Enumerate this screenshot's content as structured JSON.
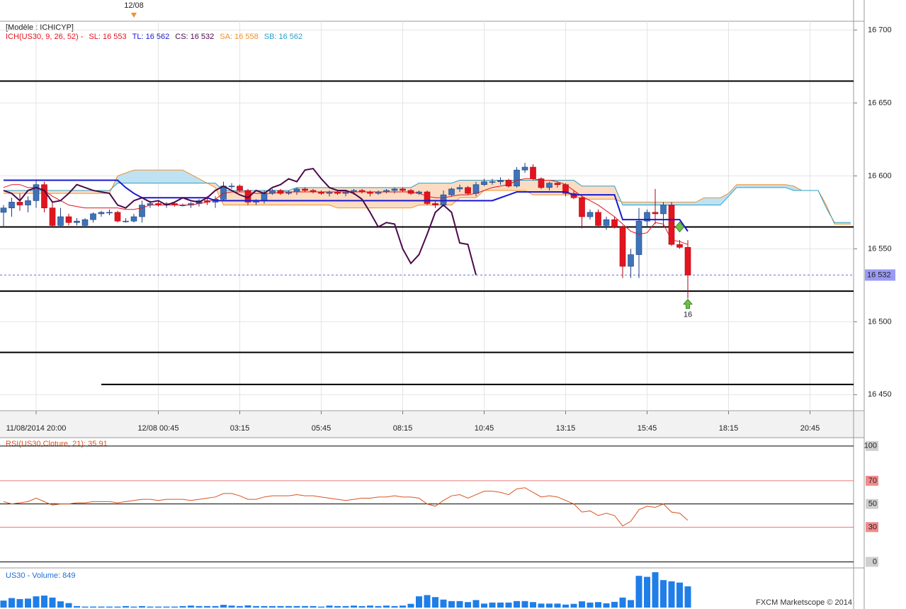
{
  "chart_data": {
    "type": "candlestick",
    "model_label": "[Modèle : ICHICYP]",
    "day_marker": {
      "value": 16,
      "label": "12/08"
    },
    "indicator_legend": [
      {
        "text": "ICH(US30, 9, 26, 52) -",
        "color": "#e0141e"
      },
      {
        "text": "SL: 16 553",
        "color": "#e0141e"
      },
      {
        "text": "TL: 16 562",
        "color": "#1a1ad0"
      },
      {
        "text": "CS: 16 532",
        "color": "#4b0a4b"
      },
      {
        "text": "SA: 16 558",
        "color": "#f0902a"
      },
      {
        "text": "SB: 16 562",
        "color": "#2aa0c8"
      }
    ],
    "xticks": [
      {
        "value": 4,
        "label": "11/08/2014 20:00"
      },
      {
        "value": 19,
        "label": "12/08 00:45"
      },
      {
        "value": 29,
        "label": "03:15"
      },
      {
        "value": 39,
        "label": "05:45"
      },
      {
        "value": 49,
        "label": "08:15"
      },
      {
        "value": 59,
        "label": "10:45"
      },
      {
        "value": 69,
        "label": "13:15"
      },
      {
        "value": 79,
        "label": "15:45"
      },
      {
        "value": 89,
        "label": "18:15"
      },
      {
        "value": 99,
        "label": "20:45"
      }
    ],
    "ylim": [
      16439,
      16706
    ],
    "yticks": [
      {
        "value": 16700,
        "label": "16 700"
      },
      {
        "value": 16650,
        "label": "16 650"
      },
      {
        "value": 16600,
        "label": "16 600"
      },
      {
        "value": 16550,
        "label": "16 550"
      },
      {
        "value": 16500,
        "label": "16 500"
      },
      {
        "value": 16450,
        "label": "16 450"
      }
    ],
    "grid": true,
    "up_color": "#3d73b8",
    "down_color": "#e3141e",
    "open": [
      16575,
      16578,
      16582,
      16580,
      16583,
      16594,
      16578,
      16566,
      16572,
      16568,
      16566,
      16570,
      16574,
      16575,
      16575,
      16569,
      16569,
      16572,
      16580,
      16581,
      16580,
      16581,
      16580,
      16580,
      16581,
      16583,
      16582,
      16584,
      16593,
      16593,
      16590,
      16582,
      16583,
      16588,
      16590,
      16588,
      16589,
      16591,
      16590,
      16589,
      16588,
      16589,
      16588,
      16589,
      16590,
      16589,
      16588,
      16589,
      16590,
      16591,
      16590,
      16588,
      16589,
      16581,
      16580,
      16587,
      16591,
      16592,
      16588,
      16594,
      16596,
      16596,
      16597,
      16593,
      16604,
      16606,
      16598,
      16592,
      16595,
      16594,
      16588,
      16585,
      16572,
      16575,
      16566,
      16570,
      16565,
      16538,
      16546,
      16569,
      16575,
      16574,
      16580,
      16553,
      16551
    ],
    "high": [
      16580,
      16585,
      16588,
      16586,
      16597,
      16596,
      16582,
      16578,
      16574,
      16571,
      16571,
      16575,
      16576,
      16577,
      16576,
      16571,
      16574,
      16583,
      16583,
      16583,
      16582,
      16582,
      16581,
      16582,
      16584,
      16586,
      16586,
      16596,
      16595,
      16594,
      16591,
      16584,
      16590,
      16591,
      16591,
      16590,
      16592,
      16592,
      16591,
      16590,
      16590,
      16590,
      16590,
      16591,
      16591,
      16590,
      16590,
      16591,
      16592,
      16592,
      16591,
      16590,
      16590,
      16583,
      16590,
      16592,
      16594,
      16593,
      16596,
      16598,
      16598,
      16599,
      16598,
      16606,
      16609,
      16608,
      16599,
      16596,
      16596,
      16595,
      16590,
      16586,
      16577,
      16577,
      16572,
      16572,
      16566,
      16550,
      16578,
      16577,
      16591,
      16582,
      16582,
      16556,
      16556
    ],
    "low": [
      16565,
      16572,
      16576,
      16575,
      16578,
      16575,
      16565,
      16565,
      16566,
      16566,
      16565,
      16568,
      16572,
      16573,
      16568,
      16568,
      16568,
      16568,
      16578,
      16579,
      16578,
      16579,
      16579,
      16578,
      16579,
      16580,
      16578,
      16583,
      16591,
      16589,
      16580,
      16580,
      16581,
      16587,
      16587,
      16587,
      16587,
      16589,
      16588,
      16587,
      16586,
      16587,
      16586,
      16587,
      16588,
      16586,
      16587,
      16588,
      16588,
      16589,
      16587,
      16587,
      16580,
      16578,
      16579,
      16586,
      16589,
      16587,
      16586,
      16593,
      16594,
      16594,
      16592,
      16592,
      16602,
      16597,
      16591,
      16590,
      16592,
      16586,
      16584,
      16564,
      16570,
      16565,
      16563,
      16564,
      16530,
      16530,
      16530,
      16565,
      16567,
      16565,
      16552,
      16550,
      16516
    ],
    "close": [
      16578,
      16582,
      16580,
      16583,
      16594,
      16578,
      16566,
      16572,
      16568,
      16569,
      16570,
      16574,
      16575,
      16575,
      16569,
      16569,
      16572,
      16580,
      16581,
      16580,
      16581,
      16580,
      16580,
      16581,
      16583,
      16582,
      16584,
      16593,
      16593,
      16590,
      16582,
      16583,
      16588,
      16590,
      16588,
      16589,
      16591,
      16590,
      16589,
      16588,
      16589,
      16588,
      16589,
      16590,
      16589,
      16588,
      16589,
      16590,
      16591,
      16590,
      16588,
      16589,
      16581,
      16580,
      16587,
      16591,
      16592,
      16588,
      16594,
      16596,
      16596,
      16597,
      16593,
      16604,
      16606,
      16598,
      16592,
      16595,
      16594,
      16588,
      16585,
      16572,
      16575,
      16566,
      16570,
      16565,
      16538,
      16546,
      16569,
      16575,
      16574,
      16580,
      16553,
      16551,
      16532
    ],
    "cloud": {
      "up_color": "#bfe2f2",
      "down_color": "#fbdcc2",
      "senkou_a": {
        "color": "#f0902a",
        "values": [
          16588,
          16588,
          16588,
          16588,
          16588,
          16588,
          16588,
          16588,
          16588,
          16588,
          16588,
          16588,
          16588,
          16588,
          16600,
          16602,
          16604,
          16604,
          16604,
          16604,
          16604,
          16604,
          16604,
          16601,
          16598,
          16595,
          16592,
          16580,
          16580,
          16580,
          16580,
          16580,
          16580,
          16580,
          16580,
          16580,
          16580,
          16580,
          16580,
          16580,
          16580,
          16578,
          16578,
          16578,
          16578,
          16578,
          16578,
          16578,
          16578,
          16578,
          16578,
          16580,
          16580,
          16580,
          16580,
          16580,
          16585,
          16585,
          16585,
          16590,
          16590,
          16590,
          16590,
          16590,
          16590,
          16587,
          16587,
          16587,
          16587,
          16587,
          16587,
          16584,
          16584,
          16584,
          16584,
          16584,
          16582,
          16582,
          16582,
          16582,
          16582,
          16582,
          16582,
          16582,
          16582,
          16582,
          16585,
          16585,
          16585,
          16588,
          16594,
          16594,
          16594,
          16594,
          16594,
          16594,
          16594,
          16593,
          16590,
          16590,
          16590,
          16580,
          16567,
          16567,
          16567
        ]
      },
      "senkou_b": {
        "color": "#2aa0c8",
        "values": [
          16590,
          16590,
          16590,
          16590,
          16590,
          16590,
          16590,
          16590,
          16590,
          16590,
          16590,
          16590,
          16590,
          16590,
          16595,
          16595,
          16595,
          16595,
          16595,
          16595,
          16595,
          16595,
          16595,
          16595,
          16595,
          16595,
          16595,
          16590,
          16590,
          16590,
          16590,
          16590,
          16590,
          16590,
          16590,
          16590,
          16592,
          16592,
          16592,
          16592,
          16592,
          16592,
          16592,
          16592,
          16592,
          16592,
          16592,
          16592,
          16592,
          16592,
          16592,
          16595,
          16595,
          16595,
          16595,
          16595,
          16597,
          16597,
          16597,
          16597,
          16597,
          16597,
          16597,
          16597,
          16597,
          16597,
          16597,
          16597,
          16597,
          16597,
          16597,
          16593,
          16593,
          16593,
          16593,
          16593,
          16580,
          16580,
          16580,
          16580,
          16580,
          16580,
          16580,
          16580,
          16580,
          16580,
          16580,
          16580,
          16580,
          16586,
          16592,
          16592,
          16592,
          16592,
          16592,
          16592,
          16592,
          16590,
          16590,
          16590,
          16590,
          16578,
          16568,
          16568,
          16568
        ]
      }
    },
    "lines": [
      {
        "color": "#e0141e",
        "width": 1,
        "values": [
          16592,
          16594,
          16594,
          16592,
          16592,
          16590,
          16586,
          16583,
          16580,
          16579,
          16578,
          16578,
          16578,
          16578,
          16578,
          16577,
          16577,
          16578,
          16580,
          16580,
          16580,
          16580,
          16580,
          16580,
          16581,
          16582,
          16584,
          16588,
          16589,
          16589,
          16589,
          16588,
          16588,
          16588,
          16589,
          16589,
          16589,
          16589,
          16589,
          16589,
          16589,
          16589,
          16589,
          16589,
          16589,
          16589,
          16589,
          16589,
          16589,
          16589,
          16589,
          16588,
          16586,
          16585,
          16585,
          16586,
          16587,
          16587,
          16588,
          16590,
          16592,
          16593,
          16594,
          16597,
          16598,
          16598,
          16597,
          16597,
          16596,
          16594,
          16590,
          16586,
          16583,
          16580,
          16576,
          16572,
          16567,
          16562,
          16560,
          16561,
          16568,
          16567,
          16556,
          16555,
          16553
        ]
      },
      {
        "color": "#1a1ad0",
        "width": 2,
        "values": [
          16597,
          16597,
          16597,
          16597,
          16597,
          16597,
          16597,
          16597,
          16597,
          16597,
          16597,
          16597,
          16597,
          16597,
          16597,
          16592,
          16588,
          16585,
          16585,
          16585,
          16585,
          16585,
          16585,
          16585,
          16585,
          16585,
          16583,
          16583,
          16583,
          16583,
          16583,
          16583,
          16583,
          16583,
          16583,
          16583,
          16583,
          16583,
          16583,
          16583,
          16583,
          16583,
          16583,
          16583,
          16583,
          16583,
          16583,
          16583,
          16583,
          16583,
          16583,
          16583,
          16583,
          16583,
          16583,
          16583,
          16583,
          16583,
          16583,
          16583,
          16583,
          16585,
          16587,
          16589,
          16589,
          16589,
          16589,
          16589,
          16589,
          16589,
          16587,
          16587,
          16587,
          16587,
          16587,
          16587,
          16570,
          16570,
          16570,
          16570,
          16570,
          16570,
          16570,
          16570,
          16562
        ]
      },
      {
        "color": "#4b0a4b",
        "width": 2,
        "values": [
          16590,
          16588,
          16583,
          16590,
          16592,
          16590,
          16582,
          16583,
          16588,
          16594,
          16592,
          16590,
          16589,
          16588,
          16580,
          16578,
          16583,
          16585,
          16582,
          16583,
          16580,
          16582,
          16585,
          16583,
          16582,
          16585,
          16590,
          16593,
          16590,
          16587,
          16585,
          16590,
          16588,
          16592,
          16594,
          16598,
          16596,
          16604,
          16605,
          16598,
          16592,
          16590,
          16590,
          16588,
          16584,
          16575,
          16565,
          16568,
          16567,
          16550,
          16540,
          16546,
          16560,
          16575,
          16580,
          16575,
          16554,
          16553,
          16532
        ]
      }
    ],
    "levels": [
      {
        "value": 16665
      },
      {
        "value": 16565
      },
      {
        "value": 16521
      },
      {
        "value": 16479
      },
      {
        "value": 16457,
        "from": 12
      }
    ],
    "last_price": {
      "value": 16532,
      "label": "16 532"
    },
    "signals": [
      {
        "slot": 83,
        "price": 16565
      },
      {
        "slot": 84,
        "price": 16512,
        "label": "16"
      }
    ],
    "rsi": {
      "type": "line",
      "label": "RSI(US30,Cloture, 21): 35,91",
      "color": "#d9531e",
      "ylim": [
        -4,
        106
      ],
      "yticks": [
        100,
        70,
        50,
        30,
        0
      ],
      "band_ticks": [
        1,
        3
      ],
      "values": [
        52,
        50,
        51,
        52,
        55,
        52,
        49,
        50,
        50,
        51,
        51,
        52,
        52,
        52,
        51,
        52,
        53,
        54,
        54,
        53,
        54,
        54,
        54,
        53,
        54,
        55,
        56,
        59,
        59,
        57,
        54,
        54,
        56,
        57,
        57,
        57,
        58,
        57,
        57,
        56,
        55,
        54,
        53,
        54,
        55,
        55,
        56,
        56,
        57,
        56,
        56,
        55,
        50,
        48,
        53,
        57,
        58,
        55,
        58,
        61,
        61,
        60,
        58,
        63,
        64,
        60,
        56,
        57,
        56,
        53,
        50,
        43,
        44,
        40,
        42,
        40,
        31,
        35,
        45,
        48,
        47,
        50,
        43,
        42,
        35.91
      ]
    },
    "volume": {
      "type": "bar",
      "label": "US30 - Volume: 849",
      "color": "#1f7ee8",
      "values": [
        280,
        380,
        340,
        360,
        450,
        480,
        400,
        250,
        180,
        60,
        40,
        40,
        40,
        40,
        40,
        60,
        40,
        60,
        40,
        40,
        40,
        40,
        60,
        80,
        60,
        60,
        60,
        110,
        80,
        60,
        90,
        60,
        60,
        60,
        60,
        60,
        60,
        60,
        60,
        40,
        80,
        60,
        60,
        80,
        60,
        80,
        60,
        80,
        60,
        80,
        150,
        450,
        500,
        420,
        320,
        260,
        260,
        220,
        300,
        160,
        200,
        200,
        200,
        260,
        260,
        220,
        160,
        160,
        160,
        120,
        150,
        250,
        200,
        220,
        170,
        230,
        400,
        300,
        1270,
        1230,
        1415,
        1100,
        1050,
        1000,
        849
      ]
    },
    "footer": "FXCM Marketscope © 2014"
  }
}
